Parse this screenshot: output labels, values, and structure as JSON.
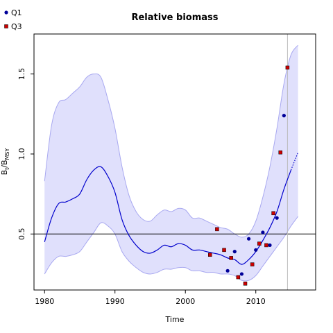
{
  "chart_data": {
    "type": "line",
    "title": "Relative biomass",
    "xlabel": "Time",
    "ylabel_main": "B",
    "ylabel_sub1": "t",
    "ylabel_mid": "/B",
    "ylabel_sub2": "MSY",
    "xlim": [
      1978.5,
      2018.5
    ],
    "ylim": [
      0.15,
      1.75
    ],
    "xticks": [
      1980,
      1990,
      2000,
      2010
    ],
    "yticks": [
      0.5,
      1.0,
      1.5
    ],
    "xtick_labels": [
      "1980",
      "1990",
      "2000",
      "2010"
    ],
    "ytick_labels": [
      "0.5",
      "1.0",
      "1.5"
    ],
    "reference_y": 0.5,
    "reference_x": 2014.5,
    "colors": {
      "band_fill": "#e0e0fc",
      "band_line": "#a8a8f0",
      "line": "#0000cc",
      "q1_point": "#000099",
      "q3_point": "#cc0000",
      "reference": "#000000",
      "vline": "#bbbbbb"
    },
    "legend": [
      {
        "label": "Q1",
        "color": "#000099"
      },
      {
        "label": "Q3",
        "color": "#cc0000"
      }
    ],
    "median": {
      "x": [
        1980,
        1981,
        1982,
        1983,
        1984,
        1985,
        1986,
        1987,
        1988,
        1989,
        1990,
        1991,
        1992,
        1993,
        1994,
        1995,
        1996,
        1997,
        1998,
        1999,
        2000,
        2001,
        2002,
        2003,
        2004,
        2005,
        2006,
        2007,
        2008,
        2009,
        2010,
        2011,
        2012,
        2013,
        2014,
        2015
      ],
      "y": [
        0.45,
        0.6,
        0.69,
        0.7,
        0.72,
        0.75,
        0.84,
        0.9,
        0.92,
        0.86,
        0.76,
        0.59,
        0.49,
        0.43,
        0.39,
        0.38,
        0.4,
        0.43,
        0.42,
        0.44,
        0.43,
        0.4,
        0.4,
        0.39,
        0.38,
        0.37,
        0.35,
        0.34,
        0.31,
        0.34,
        0.39,
        0.46,
        0.54,
        0.64,
        0.78,
        0.9
      ]
    },
    "projection": {
      "x": [
        2015,
        2016
      ],
      "y": [
        0.9,
        1.01
      ]
    },
    "band_upper": {
      "x": [
        1980,
        1981,
        1982,
        1983,
        1984,
        1985,
        1986,
        1987,
        1988,
        1989,
        1990,
        1991,
        1992,
        1993,
        1994,
        1995,
        1996,
        1997,
        1998,
        1999,
        2000,
        2001,
        2002,
        2003,
        2004,
        2005,
        2006,
        2007,
        2008,
        2009,
        2010,
        2011,
        2012,
        2013,
        2014,
        2015,
        2016
      ],
      "y": [
        0.83,
        1.18,
        1.32,
        1.34,
        1.38,
        1.42,
        1.48,
        1.5,
        1.48,
        1.34,
        1.16,
        0.92,
        0.74,
        0.64,
        0.59,
        0.58,
        0.62,
        0.65,
        0.64,
        0.66,
        0.65,
        0.6,
        0.6,
        0.58,
        0.56,
        0.54,
        0.53,
        0.5,
        0.48,
        0.5,
        0.58,
        0.73,
        0.92,
        1.16,
        1.44,
        1.62,
        1.68
      ]
    },
    "band_lower": {
      "x": [
        1980,
        1981,
        1982,
        1983,
        1984,
        1985,
        1986,
        1987,
        1988,
        1989,
        1990,
        1991,
        1992,
        1993,
        1994,
        1995,
        1996,
        1997,
        1998,
        1999,
        2000,
        2001,
        2002,
        2003,
        2004,
        2005,
        2006,
        2007,
        2008,
        2009,
        2010,
        2011,
        2012,
        2013,
        2014,
        2015,
        2016
      ],
      "y": [
        0.25,
        0.32,
        0.36,
        0.36,
        0.37,
        0.39,
        0.45,
        0.51,
        0.57,
        0.55,
        0.5,
        0.39,
        0.33,
        0.29,
        0.26,
        0.25,
        0.26,
        0.28,
        0.28,
        0.29,
        0.29,
        0.27,
        0.27,
        0.26,
        0.26,
        0.25,
        0.25,
        0.24,
        0.21,
        0.21,
        0.24,
        0.3,
        0.36,
        0.42,
        0.48,
        0.55,
        0.61
      ]
    },
    "series": [
      {
        "name": "Q1",
        "x": [
          2006,
          2007,
          2008,
          2009,
          2010,
          2011,
          2012,
          2013,
          2014
        ],
        "y": [
          0.27,
          0.39,
          0.25,
          0.47,
          0.4,
          0.51,
          0.43,
          0.6,
          1.24
        ]
      },
      {
        "name": "Q3",
        "x": [
          2003.5,
          2004.5,
          2005.5,
          2006.5,
          2007.5,
          2008.5,
          2009.5,
          2010.5,
          2011.5,
          2012.5,
          2013.5,
          2014.5
        ],
        "y": [
          0.37,
          0.53,
          0.4,
          0.35,
          0.23,
          0.19,
          0.31,
          0.44,
          0.43,
          0.63,
          1.01,
          1.54
        ]
      }
    ]
  }
}
